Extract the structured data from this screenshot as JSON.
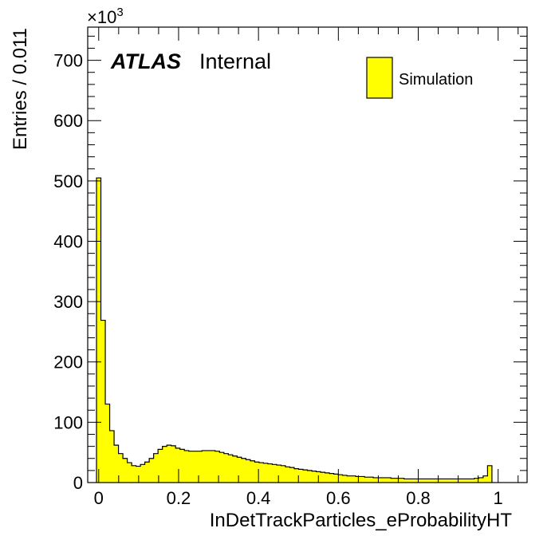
{
  "chart_data": {
    "type": "bar",
    "subtype": "histogram",
    "x": {
      "label": "InDetTrackParticles_eProbabilityHT",
      "range": [
        -0.0275,
        1.0725
      ],
      "ticks": [
        0,
        0.2,
        0.4,
        0.6,
        0.8,
        1
      ],
      "tick_labels": [
        "0",
        "0.2",
        "0.4",
        "0.6",
        "0.8",
        "1"
      ]
    },
    "y": {
      "label": "Entries / 0.011",
      "multiplier": "×10",
      "multiplier_exponent": "3",
      "range": [
        0,
        755
      ],
      "ticks": [
        0,
        100,
        200,
        300,
        400,
        500,
        600,
        700
      ],
      "tick_labels": [
        "0",
        "100",
        "200",
        "300",
        "400",
        "500",
        "600",
        "700"
      ]
    },
    "bins": {
      "start": -0.0055,
      "width": 0.011
    },
    "series": [
      {
        "name": "Simulation",
        "color": "#ffff00",
        "edge_color": "#000000",
        "values": [
          505,
          269,
          130,
          86,
          62,
          48,
          40,
          33,
          28,
          27,
          30,
          34,
          40,
          48,
          55,
          60,
          62,
          61,
          57,
          55,
          53,
          52,
          52,
          52,
          53,
          53,
          53,
          52,
          50,
          48,
          46,
          44,
          42,
          40,
          38,
          36,
          34,
          33,
          32,
          31,
          30,
          29,
          28,
          26,
          25,
          23,
          22,
          21,
          20,
          19,
          18,
          17,
          16,
          15,
          14,
          13,
          12,
          11,
          11,
          10,
          10,
          9,
          9,
          8,
          8,
          8,
          8,
          7,
          7,
          7,
          6,
          6,
          6,
          6,
          6,
          6,
          6,
          6,
          6,
          6,
          6,
          6,
          6,
          6,
          6,
          6,
          7,
          8,
          11,
          28
        ]
      }
    ],
    "legend": {
      "entries": [
        "Simulation"
      ],
      "placement": "top-right"
    },
    "labels": {
      "atlas": "ATLAS",
      "status": "Internal"
    },
    "grid": false
  }
}
